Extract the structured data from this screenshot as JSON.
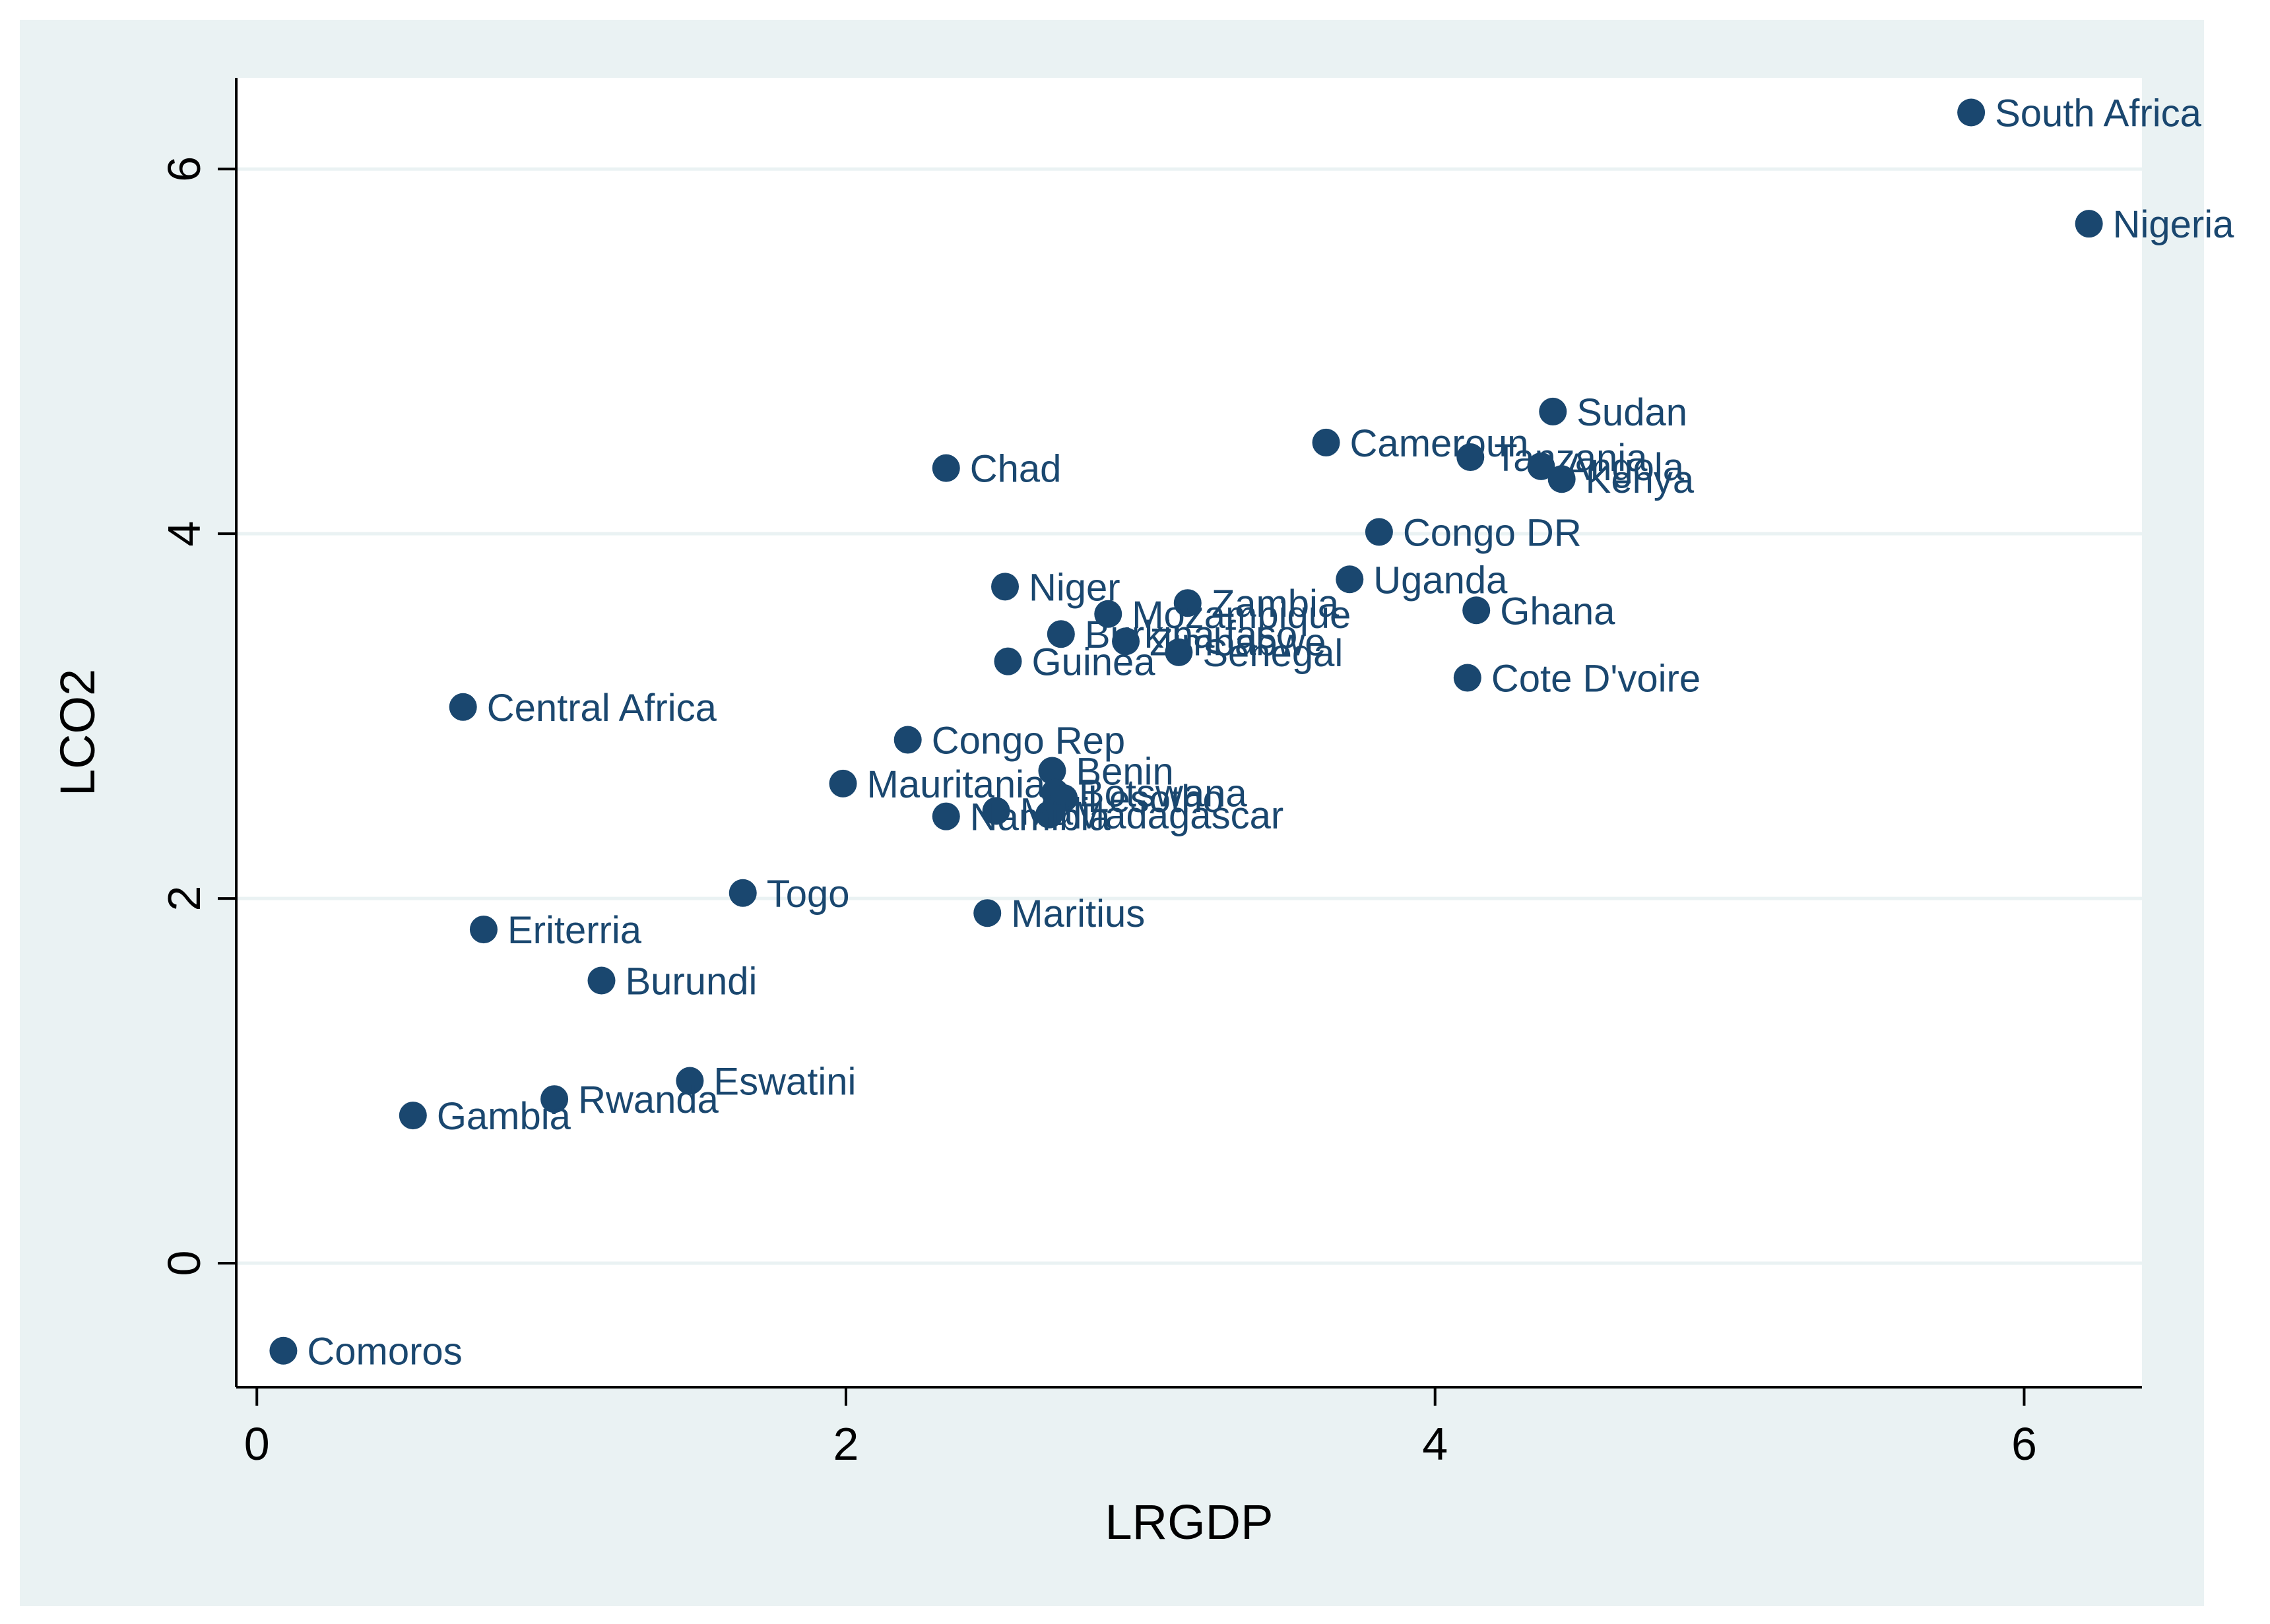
{
  "chart_data": {
    "type": "scatter",
    "title": "",
    "xlabel": "LRGDP",
    "ylabel": "LCO2",
    "xlim": [
      -0.07,
      6.4
    ],
    "ylim": [
      -0.68,
      6.5
    ],
    "xticks": [
      0,
      2,
      4,
      6
    ],
    "yticks": [
      0,
      2,
      4,
      6
    ],
    "grid": "horizontal",
    "legend": "none",
    "colors": {
      "marker": "#1a476f",
      "label": "#1a476f",
      "outer_background": "#eaf2f3",
      "plot_background": "#ffffff",
      "gridline": "#eaf2f3",
      "axis": "#000000"
    },
    "points": [
      {
        "label": "South Africa",
        "x": 5.82,
        "y": 6.31
      },
      {
        "label": "Nigeria",
        "x": 6.22,
        "y": 5.7
      },
      {
        "label": "Sudan",
        "x": 4.4,
        "y": 4.67
      },
      {
        "label": "Cameroun",
        "x": 3.63,
        "y": 4.5
      },
      {
        "label": "Tanzania",
        "x": 4.12,
        "y": 4.42
      },
      {
        "label": "Angola",
        "x": 4.36,
        "y": 4.37
      },
      {
        "label": "Kenya",
        "x": 4.43,
        "y": 4.3
      },
      {
        "label": "Chad",
        "x": 2.34,
        "y": 4.36
      },
      {
        "label": "Congo DR",
        "x": 3.81,
        "y": 4.01
      },
      {
        "label": "Uganda",
        "x": 3.71,
        "y": 3.75
      },
      {
        "label": "Niger",
        "x": 2.54,
        "y": 3.71
      },
      {
        "label": "Zambia",
        "x": 3.16,
        "y": 3.62
      },
      {
        "label": "Ghana",
        "x": 4.14,
        "y": 3.58
      },
      {
        "label": "Mozambique",
        "x": 2.89,
        "y": 3.56
      },
      {
        "label": "Burkina faso",
        "x": 2.73,
        "y": 3.45
      },
      {
        "label": "Zimbabwe",
        "x": 2.95,
        "y": 3.41
      },
      {
        "label": "Senegal",
        "x": 3.13,
        "y": 3.35
      },
      {
        "label": "Guinea",
        "x": 2.55,
        "y": 3.3
      },
      {
        "label": "Cote D'voire",
        "x": 4.11,
        "y": 3.21
      },
      {
        "label": "Central Africa",
        "x": 0.7,
        "y": 3.05
      },
      {
        "label": "Congo Rep",
        "x": 2.21,
        "y": 2.87
      },
      {
        "label": "Benin",
        "x": 2.7,
        "y": 2.7
      },
      {
        "label": "Mauritania",
        "x": 1.99,
        "y": 2.63
      },
      {
        "label": "Botswana",
        "x": 2.71,
        "y": 2.58
      },
      {
        "label": "Lesotho",
        "x": 2.74,
        "y": 2.55
      },
      {
        "label": "Mali",
        "x": 2.51,
        "y": 2.48
      },
      {
        "label": "Madagascar",
        "x": 2.69,
        "y": 2.46
      },
      {
        "label": "Namibia",
        "x": 2.34,
        "y": 2.45
      },
      {
        "label": "Togo",
        "x": 1.65,
        "y": 2.03
      },
      {
        "label": "Maritius",
        "x": 2.48,
        "y": 1.92
      },
      {
        "label": "Eriterria",
        "x": 0.77,
        "y": 1.83
      },
      {
        "label": "Burundi",
        "x": 1.17,
        "y": 1.55
      },
      {
        "label": "Eswatini",
        "x": 1.47,
        "y": 1.0
      },
      {
        "label": "Rwanda",
        "x": 1.01,
        "y": 0.9
      },
      {
        "label": "Gambia",
        "x": 0.53,
        "y": 0.81
      },
      {
        "label": "Comoros",
        "x": 0.09,
        "y": -0.48
      }
    ]
  }
}
